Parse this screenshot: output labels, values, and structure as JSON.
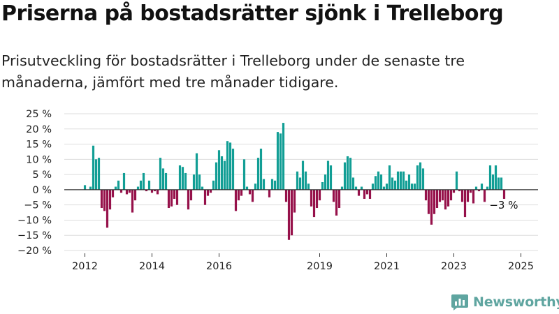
{
  "header": {
    "title": "Priserna på bostadsrätter sjönk i Trelleborg",
    "subtitle": "Prisutveckling för bostadsrätter i Trelleborg under de senaste tre månaderna, jämfört med tre månader tidigare."
  },
  "brand": {
    "name": "Newsworthy",
    "color": "#5fa5a0",
    "icon": "bar-chart-icon"
  },
  "colors": {
    "positive": "#129e95",
    "negative": "#96114a",
    "grid": "#dddddd",
    "axis": "#333333"
  },
  "chart_data": {
    "type": "bar",
    "title": "",
    "xlabel": "",
    "ylabel": "",
    "ylim": [
      -20,
      25
    ],
    "yticks": [
      25,
      20,
      15,
      10,
      5,
      0,
      -5,
      -10,
      -15,
      -20
    ],
    "ytick_labels": [
      "25 %",
      "20 %",
      "15 %",
      "10 %",
      "5 %",
      "0 %",
      "−5 %",
      "−10 %",
      "−15 %",
      "−20 %"
    ],
    "xtick_labels": [
      "2012",
      "2014",
      "2016",
      "2019",
      "2021",
      "2023",
      "2025"
    ],
    "grid": true,
    "annotation": "−3 %",
    "x_start": "2012-01",
    "frequency": "monthly",
    "values": [
      1.5,
      0,
      1,
      14.5,
      10,
      10.5,
      -6,
      -7,
      -12.5,
      -6.5,
      -2.5,
      1,
      3,
      -1,
      5.5,
      -1.5,
      -1,
      -7.5,
      -3.5,
      1,
      3,
      5.5,
      -0.5,
      3,
      -1,
      -0.5,
      -1.5,
      10.5,
      7,
      5.5,
      -6,
      -5.5,
      -3,
      -5,
      8,
      7.5,
      5.5,
      -6.5,
      -3.5,
      5,
      12,
      5,
      1,
      -5,
      -2,
      -1,
      3,
      9,
      13,
      11,
      9.5,
      16,
      15.5,
      13.5,
      -7,
      -3.5,
      -2,
      10,
      1,
      -1.5,
      -4,
      2,
      10.5,
      13.5,
      3.5,
      0,
      -2.5,
      3.5,
      3,
      19,
      18.5,
      22,
      -4,
      -16.5,
      -15,
      -7.5,
      6,
      4,
      9.5,
      6,
      2,
      -5.5,
      -9,
      -6,
      -3.5,
      2.5,
      5,
      9.5,
      8,
      -4,
      -8.5,
      -6,
      1,
      9,
      11,
      10.5,
      4,
      1,
      -2,
      1,
      -3,
      -1.5,
      -3,
      2,
      4.5,
      6,
      5,
      1,
      2,
      8,
      4,
      3,
      6,
      6,
      6,
      3,
      5,
      2,
      2,
      8,
      9,
      7,
      -3.5,
      -8,
      -11.5,
      -8,
      -6,
      -4,
      -3.5,
      -6.5,
      -5.5,
      -3.5,
      -1,
      6,
      -0.5,
      -4,
      -9,
      -4,
      -1,
      -4.5,
      1,
      -0.5,
      2,
      -4,
      1,
      8,
      5,
      8,
      4,
      4,
      -3
    ]
  }
}
